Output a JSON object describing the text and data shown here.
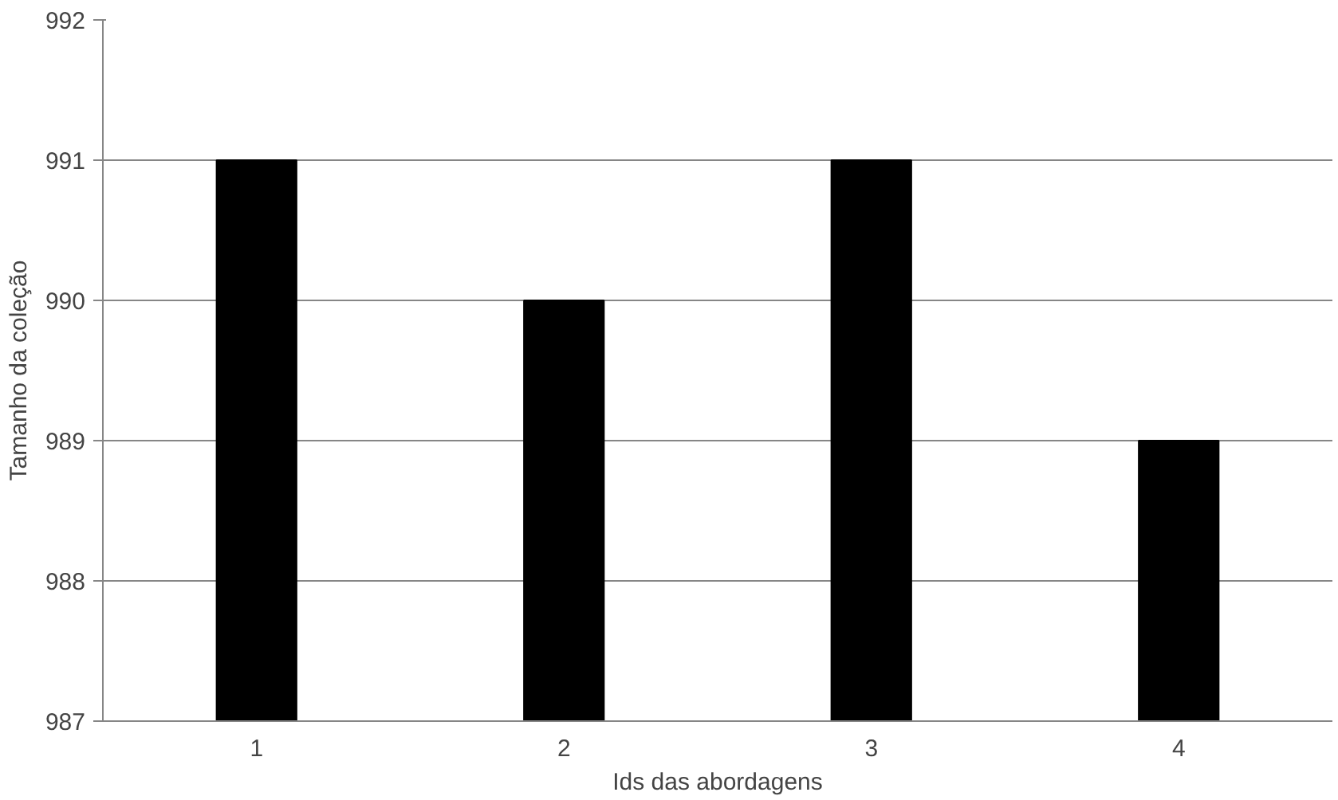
{
  "chart_data": {
    "type": "bar",
    "xlabel": "Ids das abordagens",
    "ylabel": "Tamanho da coleção",
    "categories": [
      "1",
      "2",
      "3",
      "4"
    ],
    "values": [
      991,
      990,
      991,
      989
    ],
    "color": "#000000",
    "ylim": [
      987,
      992
    ],
    "yticks": [
      987,
      988,
      989,
      990,
      991,
      992
    ],
    "grid": "y"
  }
}
